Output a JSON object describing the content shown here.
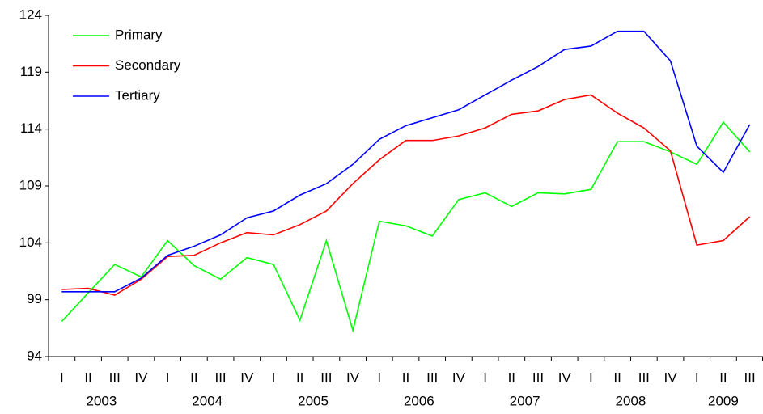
{
  "chart_data": {
    "type": "line",
    "groups": [
      {
        "name": "2003",
        "categories": [
          "I",
          "II",
          "III",
          "IV"
        ]
      },
      {
        "name": "2004",
        "categories": [
          "I",
          "II",
          "III",
          "IV"
        ]
      },
      {
        "name": "2005",
        "categories": [
          "I",
          "II",
          "III",
          "IV"
        ]
      },
      {
        "name": "2006",
        "categories": [
          "I",
          "II",
          "III",
          "IV"
        ]
      },
      {
        "name": "2007",
        "categories": [
          "I",
          "II",
          "III",
          "IV"
        ]
      },
      {
        "name": "2008",
        "categories": [
          "I",
          "II",
          "III",
          "IV"
        ]
      },
      {
        "name": "2009",
        "categories": [
          "I",
          "II",
          "III"
        ]
      }
    ],
    "series": [
      {
        "name": "Primary",
        "color": "#00ff00",
        "values": [
          97.1,
          99.6,
          102.1,
          101.0,
          104.2,
          102.0,
          100.8,
          102.7,
          102.1,
          97.2,
          104.2,
          96.3,
          105.9,
          105.5,
          104.6,
          107.8,
          108.4,
          107.2,
          108.4,
          108.3,
          108.7,
          112.9,
          112.9,
          112.0,
          110.9,
          114.6,
          112.0
        ]
      },
      {
        "name": "Secondary",
        "color": "#ff0000",
        "values": [
          99.9,
          100.0,
          99.4,
          100.8,
          102.8,
          102.9,
          104.0,
          104.9,
          104.7,
          105.6,
          106.8,
          109.2,
          111.3,
          113.0,
          113.0,
          113.4,
          114.1,
          115.3,
          115.6,
          116.6,
          117.0,
          115.4,
          114.1,
          112.1,
          103.8,
          104.2,
          106.3
        ]
      },
      {
        "name": "Tertiary",
        "color": "#0000ff",
        "values": [
          99.7,
          99.7,
          99.7,
          100.9,
          102.9,
          103.7,
          104.7,
          106.2,
          106.8,
          108.2,
          109.2,
          110.9,
          113.1,
          114.3,
          115.0,
          115.7,
          117.0,
          118.3,
          119.5,
          121.0,
          121.3,
          122.6,
          122.6,
          120.0,
          112.5,
          110.2,
          114.4
        ]
      }
    ],
    "ylim": [
      94,
      124
    ],
    "yticks": [
      94,
      99,
      104,
      109,
      114,
      119,
      124
    ],
    "grid": false,
    "legend": "top-left"
  }
}
